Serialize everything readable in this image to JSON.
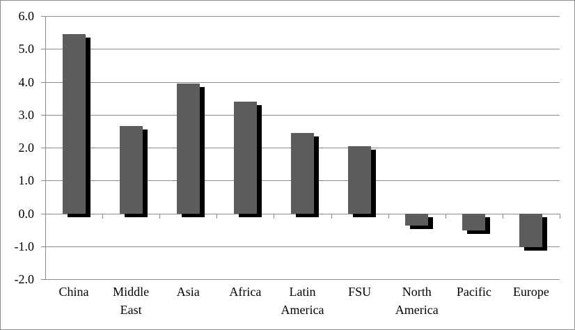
{
  "chart_data": {
    "type": "bar",
    "title": "",
    "xlabel": "",
    "ylabel": "",
    "categories": [
      "China",
      "Middle East",
      "Asia",
      "Africa",
      "Latin America",
      "FSU",
      "North America",
      "Pacific",
      "Europe"
    ],
    "values": [
      5.45,
      2.65,
      3.95,
      3.4,
      2.45,
      2.05,
      -0.35,
      -0.5,
      -1.0
    ],
    "ylim": [
      -2.0,
      6.0
    ],
    "ytick_step": 1.0,
    "ytick_labels": [
      "6.0",
      "5.0",
      "4.0",
      "3.0",
      "2.0",
      "1.0",
      "0.0",
      "-1.0",
      "-2.0"
    ],
    "grid": true,
    "legend": false,
    "bar_color": "#5c5c5c",
    "shadow_color": "#000000",
    "axis_color": "#8a8a8a",
    "text_color": "#000000",
    "background_color": "#ffffff"
  }
}
